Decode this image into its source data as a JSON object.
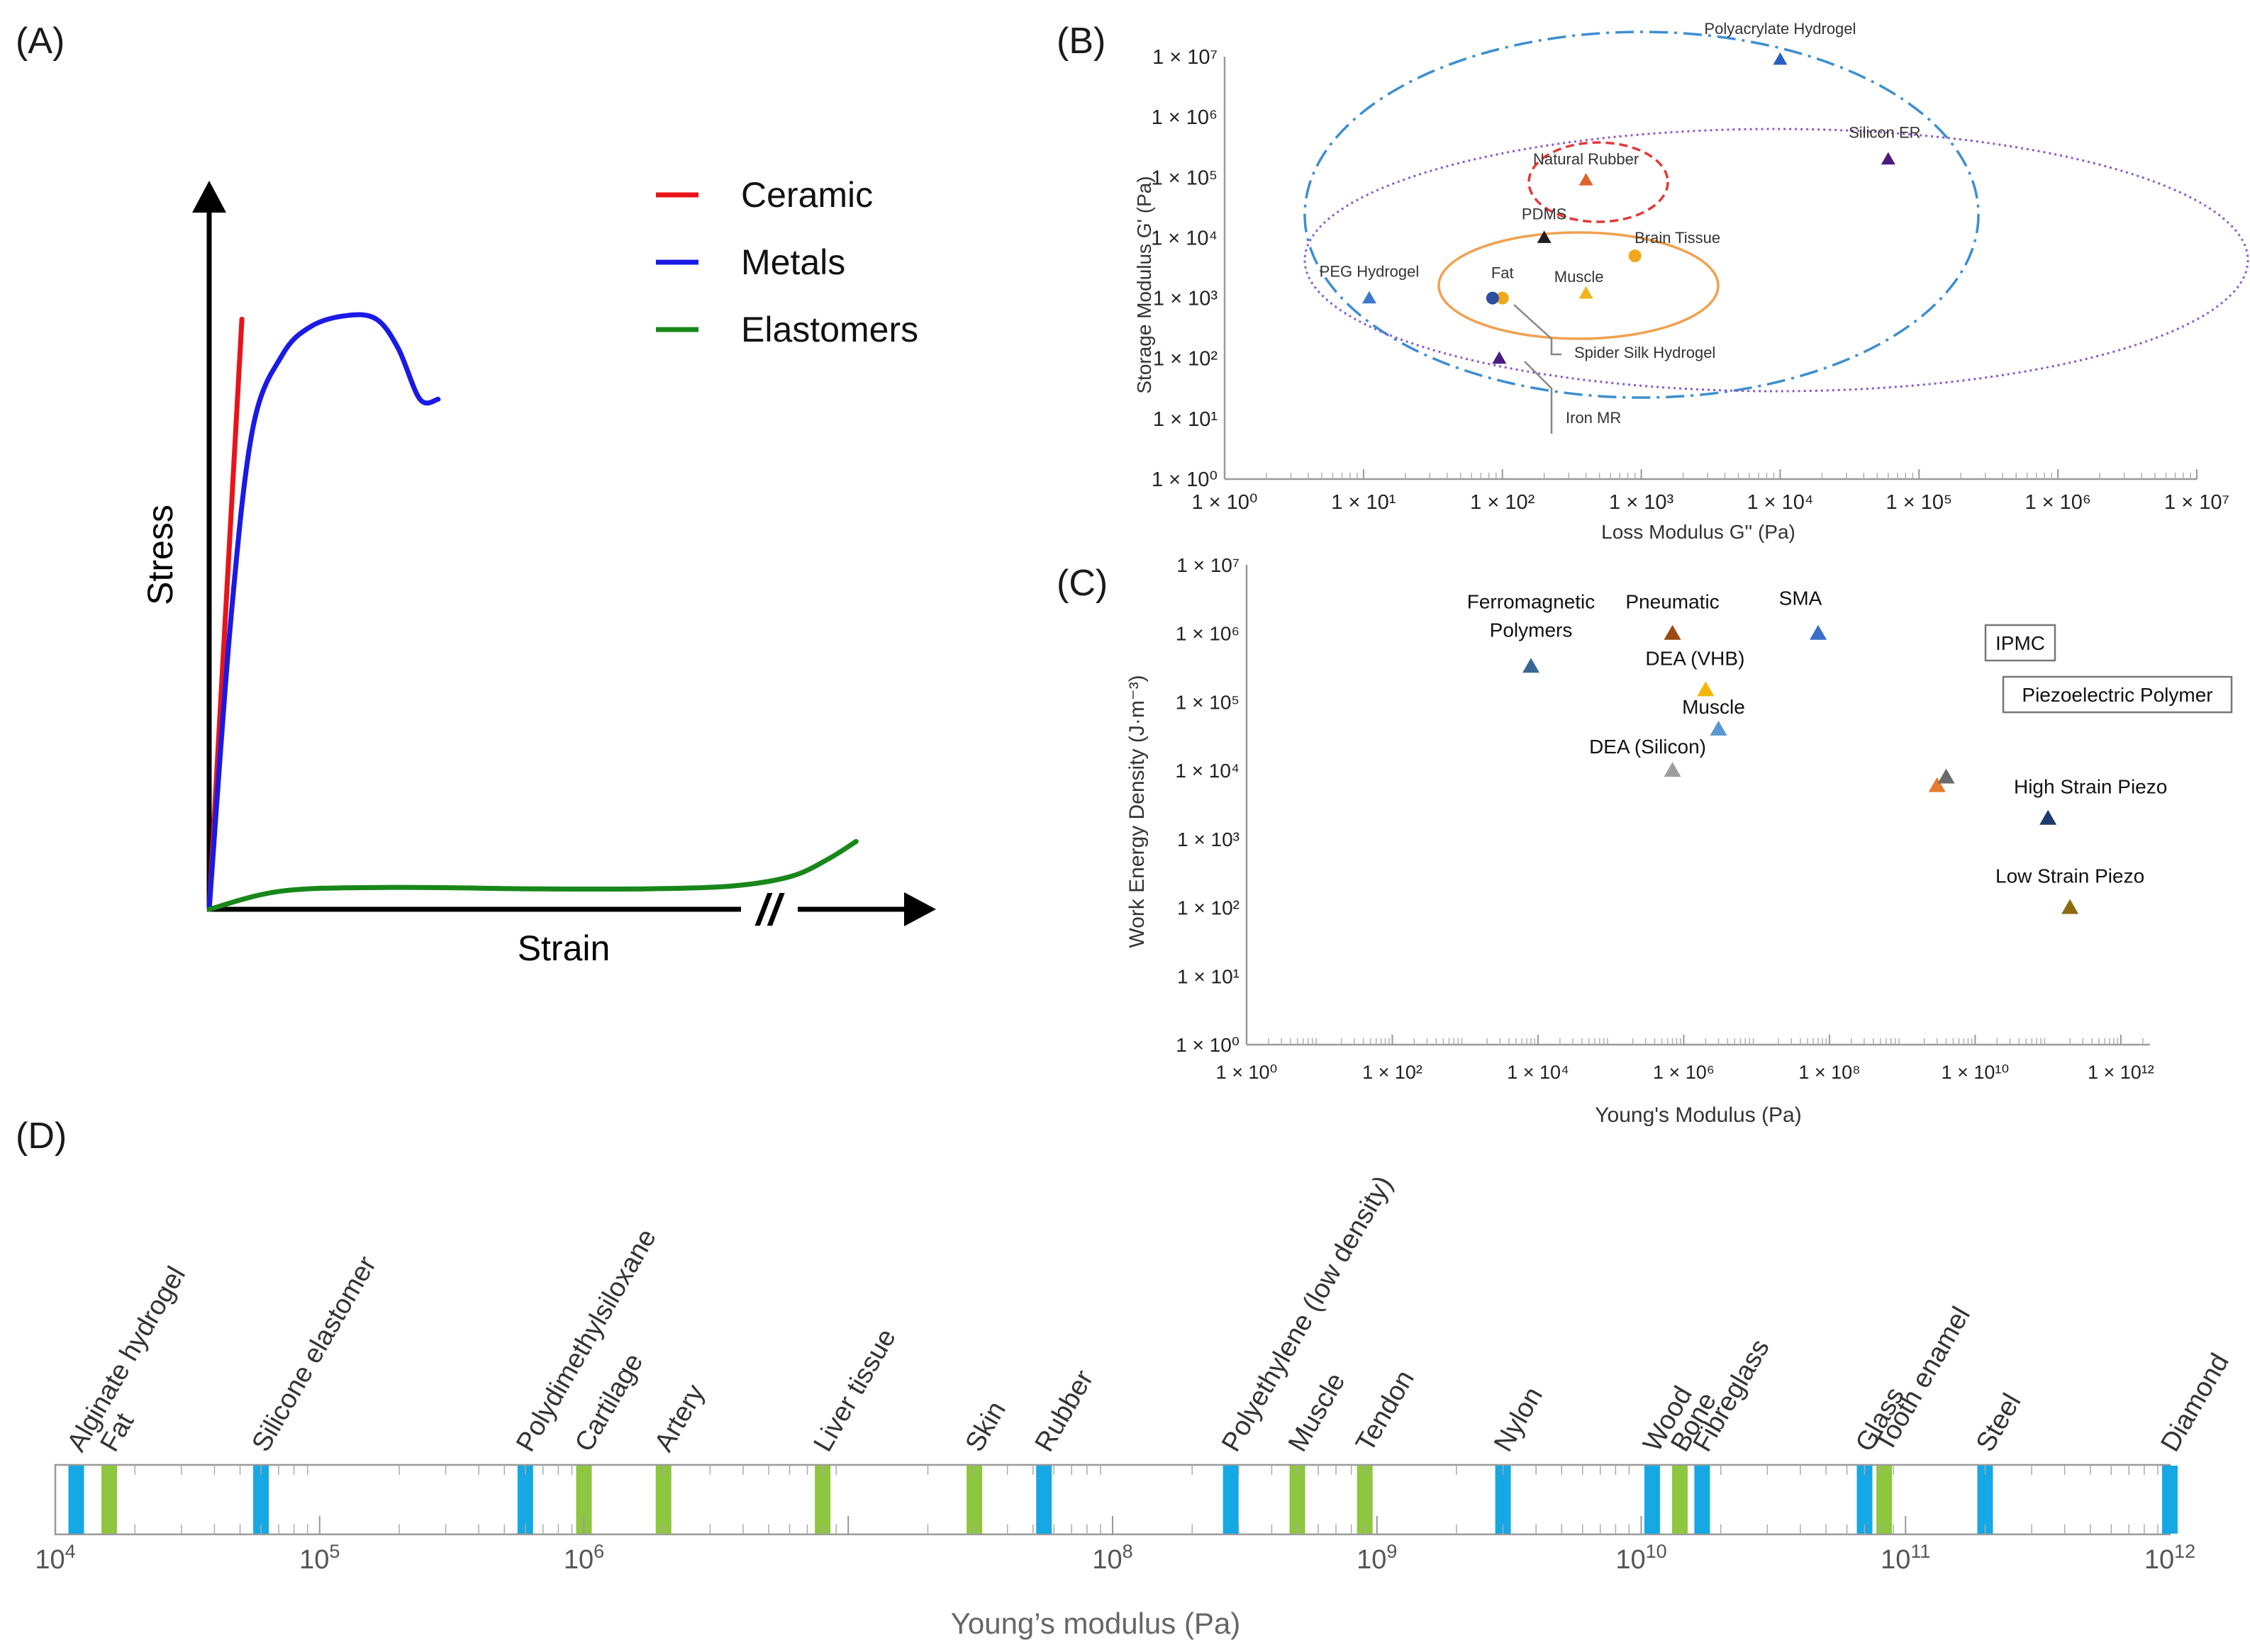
{
  "panels": {
    "a": "(A)",
    "b": "(B)",
    "c": "(C)",
    "d": "(D)"
  },
  "chart_data": [
    {
      "id": "A",
      "type": "line",
      "xlabel": "Strain",
      "ylabel": "Stress",
      "axis_break": "//",
      "xlim": [
        0,
        100
      ],
      "ylim": [
        0,
        100
      ],
      "series": [
        {
          "name": "Ceramic",
          "color": "#e8141a",
          "x": [
            0,
            4.5
          ],
          "y": [
            0,
            81
          ]
        },
        {
          "name": "Metals",
          "color": "#1a1ae6",
          "x": [
            0,
            3,
            6,
            10,
            14,
            19,
            23,
            26,
            29,
            31.5
          ],
          "y": [
            0,
            40,
            66,
            76,
            80,
            81.5,
            81,
            77,
            70,
            70
          ]
        },
        {
          "name": "Elastomers",
          "color": "#18871a",
          "x": [
            0,
            10,
            25,
            45,
            60,
            72,
            80,
            85,
            89
          ],
          "y": [
            0,
            2.5,
            3,
            2.8,
            2.8,
            3.2,
            4.5,
            6.8,
            9.3
          ]
        }
      ]
    },
    {
      "id": "B",
      "type": "scatter",
      "xlabel": "Loss Modulus G'' (Pa)",
      "ylabel": "Storage Modulus G' (Pa)",
      "xlim_log10": [
        0,
        7
      ],
      "ylim_log10": [
        0,
        7
      ],
      "x_ticks": [
        "1 × 10⁰",
        "1 × 10¹",
        "1 × 10²",
        "1 × 10³",
        "1 × 10⁴",
        "1 × 10⁵",
        "1 × 10⁶",
        "1 × 10⁷"
      ],
      "y_ticks": [
        "1 × 10⁰",
        "1 × 10¹",
        "1 × 10²",
        "1 × 10³",
        "1 × 10⁴",
        "1 × 10⁵",
        "1 × 10⁶",
        "1 × 10⁷"
      ],
      "points": [
        {
          "label": "Polyacrylate Hydrogel",
          "x": 10000,
          "y": 9000000,
          "marker": "triangle",
          "color": "#2a5fbf"
        },
        {
          "label": "Silicon ER",
          "x": 60000,
          "y": 200000,
          "marker": "triangle",
          "color": "#4b1a80"
        },
        {
          "label": "Natural Rubber",
          "x": 400,
          "y": 90000,
          "marker": "triangle",
          "color": "#e0622a"
        },
        {
          "label": "PDMS",
          "x": 200,
          "y": 10000,
          "marker": "triangle",
          "color": "#1e1e1e"
        },
        {
          "label": "Brain Tissue",
          "x": 900,
          "y": 5000,
          "marker": "circle",
          "color": "#f0a81a"
        },
        {
          "label": "Muscle",
          "x": 400,
          "y": 1200,
          "marker": "triangle",
          "color": "#f0b41a"
        },
        {
          "label": "Fat",
          "x": 100,
          "y": 1000,
          "marker": "circle",
          "color": "#f0a81a"
        },
        {
          "label": "PEG Hydrogel",
          "x": 11,
          "y": 1000,
          "marker": "triangle",
          "color": "#3a7ac8"
        },
        {
          "label": "Spider Silk Hydrogel",
          "x": 85,
          "y": 1000,
          "marker": "circle",
          "color": "#2a4fa0"
        },
        {
          "label": "Iron MR",
          "x": 95,
          "y": 100,
          "marker": "triangle",
          "color": "#4b1a80"
        }
      ]
    },
    {
      "id": "C",
      "type": "scatter",
      "xlabel": "Young's Modulus (Pa)",
      "ylabel": "Work Energy Density (J·m⁻³)",
      "xlim_log10": [
        0,
        12.4
      ],
      "ylim_log10": [
        0,
        7
      ],
      "x_ticks": [
        "1 × 10⁰",
        "1 × 10²",
        "1 × 10⁴",
        "1 × 10⁶",
        "1 × 10⁸",
        "1 × 10¹⁰",
        "1 × 10¹²"
      ],
      "y_ticks": [
        "1 × 10⁰",
        "1 × 10¹",
        "1 × 10²",
        "1 × 10³",
        "1 × 10⁴",
        "1 × 10⁵",
        "1 × 10⁶",
        "1 × 10⁷"
      ],
      "points": [
        {
          "label": "Ferromagnetic\nPolymers",
          "x": 8000,
          "y": 330000,
          "color": "#3a6896"
        },
        {
          "label": "Pneumatic",
          "x": 700000,
          "y": 1000000,
          "color": "#9c4a14"
        },
        {
          "label": "SMA",
          "x": 70000000,
          "y": 1000000,
          "color": "#3a6ec8"
        },
        {
          "label": "DEA (VHB)",
          "x": 2000000,
          "y": 150000,
          "color": "#f2b60a"
        },
        {
          "label": "Muscle",
          "x": 3000000,
          "y": 40000,
          "color": "#5a98d2"
        },
        {
          "label": "DEA (Silicon)",
          "x": 700000,
          "y": 10000,
          "color": "#9e9e9e"
        },
        {
          "label": "IPMC",
          "x": 3000000000,
          "y": 6000,
          "color": "#e87a30",
          "boxed": true
        },
        {
          "label": "Piezoelectric Polymer",
          "x": 4000000000,
          "y": 8000,
          "color": "#6a6a6a",
          "boxed": true
        },
        {
          "label": "High Strain Piezo",
          "x": 100000000000,
          "y": 2000,
          "color": "#1e3a6a"
        },
        {
          "label": "Low Strain Piezo",
          "x": 200000000000,
          "y": 100,
          "color": "#8c6a10"
        }
      ]
    },
    {
      "id": "D",
      "type": "bar",
      "xlabel": "Young’s modulus (Pa)",
      "xlim_log10": [
        4,
        12
      ],
      "tick_exponents": [
        4,
        5,
        6,
        8,
        9,
        10,
        11,
        12
      ],
      "items": [
        {
          "label": "Alginate hydrogel",
          "value": 12000,
          "color": "#16a8e4"
        },
        {
          "label": "Fat",
          "value": 16000,
          "color": "#8ec63f"
        },
        {
          "label": "Silicone elastomer",
          "value": 60000,
          "color": "#16a8e4"
        },
        {
          "label": "Polydimethylsiloxane",
          "value": 600000,
          "color": "#16a8e4"
        },
        {
          "label": "Cartilage",
          "value": 1000000,
          "color": "#8ec63f"
        },
        {
          "label": "Artery",
          "value": 2000000,
          "color": "#8ec63f"
        },
        {
          "label": "Liver tissue",
          "value": 8000000,
          "color": "#8ec63f"
        },
        {
          "label": "Skin",
          "value": 30000000,
          "color": "#8ec63f"
        },
        {
          "label": "Rubber",
          "value": 55000000,
          "color": "#16a8e4"
        },
        {
          "label": "Polyethylene (low density)",
          "value": 280000000,
          "color": "#16a8e4"
        },
        {
          "label": "Muscle",
          "value": 500000000,
          "color": "#8ec63f"
        },
        {
          "label": "Tendon",
          "value": 900000000,
          "color": "#8ec63f"
        },
        {
          "label": "Nylon",
          "value": 3000000000,
          "color": "#16a8e4"
        },
        {
          "label": "Wood",
          "value": 11000000000,
          "color": "#16a8e4"
        },
        {
          "label": "Bone",
          "value": 14000000000,
          "color": "#8ec63f"
        },
        {
          "label": "Fibreglass",
          "value": 17000000000,
          "color": "#16a8e4"
        },
        {
          "label": "Glass",
          "value": 70000000000,
          "color": "#16a8e4"
        },
        {
          "label": "Tooth enamel",
          "value": 83000000000,
          "color": "#8ec63f"
        },
        {
          "label": "Steel",
          "value": 200000000000,
          "color": "#16a8e4"
        },
        {
          "label": "Diamond",
          "value": 1000000000000,
          "color": "#16a8e4"
        }
      ]
    }
  ]
}
